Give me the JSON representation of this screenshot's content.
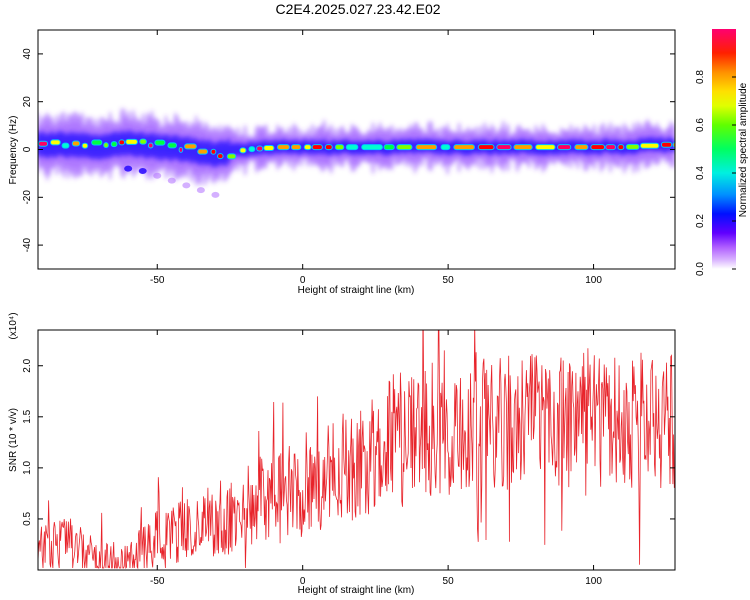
{
  "title": "C2E4.2025.027.23.42.E02",
  "chart_data": [
    {
      "type": "heatmap",
      "xlabel": "Height of straight line (km)",
      "ylabel": "Frequency (Hz)",
      "xlim": [
        -91,
        128
      ],
      "ylim": [
        -50,
        50
      ],
      "x_ticks": [
        -50,
        0,
        50,
        100
      ],
      "y_ticks": [
        -40,
        -20,
        0,
        20,
        40
      ],
      "colorbar": {
        "label": "Normalized spectral amplitude",
        "range": [
          0,
          1
        ],
        "ticks": [
          "0.0",
          "0.2",
          "0.4",
          "0.6",
          "0.8"
        ],
        "colors": [
          "#ffffff",
          "#c080ff",
          "#6600ff",
          "#0000ff",
          "#00b0ff",
          "#00ffd0",
          "#00ff40",
          "#80ff00",
          "#ffff00",
          "#ffa000",
          "#ff0000",
          "#ff0060"
        ]
      },
      "main_band": {
        "x": [
          -90,
          -80,
          -70,
          -60,
          -50,
          -40,
          -30,
          -20,
          -10,
          0,
          10,
          20,
          30,
          40,
          50,
          60,
          70,
          80,
          90,
          100,
          110,
          120,
          128
        ],
        "y": [
          2,
          2,
          1,
          3,
          1,
          0,
          -2,
          0,
          1,
          1,
          1,
          1,
          1,
          1,
          1,
          1,
          1,
          1,
          1,
          1,
          1,
          2,
          2
        ]
      },
      "secondary_feature": {
        "x": [
          -60,
          -55,
          -50,
          -45,
          -40,
          -35,
          -30
        ],
        "y": [
          -8,
          -9,
          -11,
          -13,
          -15,
          -17,
          -19
        ]
      }
    },
    {
      "type": "line",
      "xlabel": "Height of straight line (km)",
      "ylabel": "SNR (10 * v/v)",
      "multiplier": "(x10⁴)",
      "xlim": [
        -91,
        128
      ],
      "ylim": [
        0,
        2.35
      ],
      "x_ticks": [
        -50,
        0,
        50,
        100
      ],
      "y_ticks": [
        0.5,
        1.0,
        1.5,
        2.0
      ],
      "y_tick_labels": [
        "0.5",
        "1.0",
        "1.5",
        "2.0"
      ],
      "series": [
        {
          "color": "#e8232a",
          "trend_x": [
            -91,
            -85,
            -80,
            -75,
            -70,
            -65,
            -60,
            -55,
            -50,
            -45,
            -40,
            -35,
            -30,
            -25,
            -20,
            -15,
            -10,
            -5,
            0,
            5,
            10,
            15,
            20,
            25,
            30,
            35,
            40,
            45,
            50,
            55,
            60,
            65,
            70,
            75,
            80,
            85,
            90,
            95,
            100,
            105,
            110,
            115,
            120,
            125,
            128
          ],
          "trend_y": [
            0.2,
            0.22,
            0.25,
            0.15,
            0.1,
            0.07,
            0.1,
            0.2,
            0.3,
            0.35,
            0.38,
            0.4,
            0.42,
            0.5,
            0.6,
            0.7,
            0.75,
            0.7,
            0.72,
            0.85,
            0.95,
            1.0,
            1.05,
            1.15,
            1.25,
            1.3,
            1.35,
            1.38,
            1.4,
            1.45,
            1.45,
            1.45,
            1.45,
            1.45,
            1.45,
            1.45,
            1.45,
            1.45,
            1.45,
            1.45,
            1.45,
            1.45,
            1.45,
            1.45,
            1.42
          ]
        }
      ]
    }
  ]
}
